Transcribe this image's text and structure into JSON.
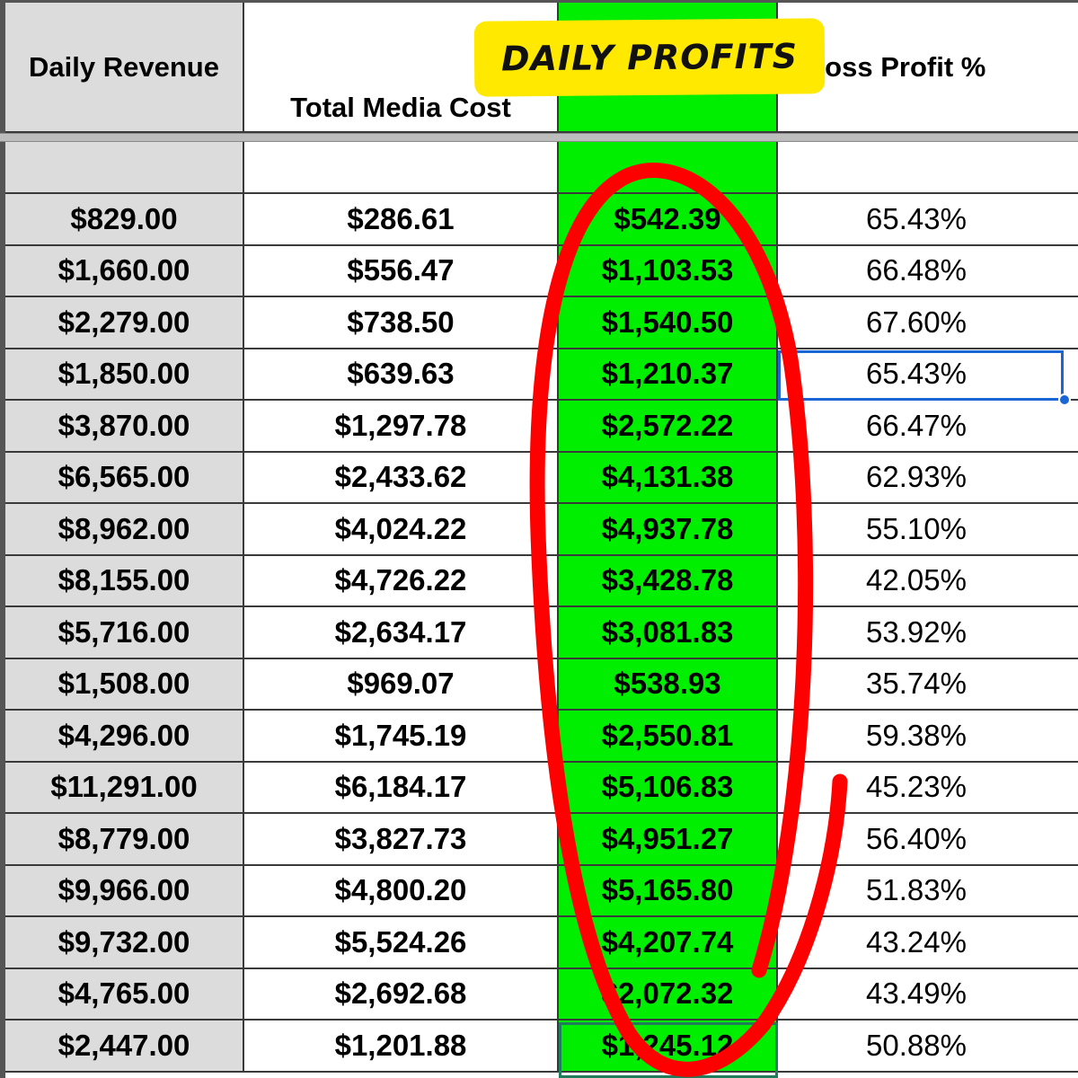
{
  "columns": {
    "revenue": "Daily Revenue",
    "media_cost": "Total Media Cost",
    "profit": "",
    "gross_profit_pct": "Gross Profit %"
  },
  "annotation": {
    "sticker_text": "DAILY PROFITS"
  },
  "colors": {
    "profit_column": "#00ee00",
    "revenue_column": "#dcdcdc",
    "sticker": "#ffe900",
    "circle": "#ff0000",
    "selection": "#1a66d4"
  },
  "rows": [
    {
      "revenue": "$829.00",
      "media_cost": "$286.61",
      "profit": "$542.39",
      "gross_profit_pct": "65.43%"
    },
    {
      "revenue": "$1,660.00",
      "media_cost": "$556.47",
      "profit": "$1,103.53",
      "gross_profit_pct": "66.48%"
    },
    {
      "revenue": "$2,279.00",
      "media_cost": "$738.50",
      "profit": "$1,540.50",
      "gross_profit_pct": "67.60%"
    },
    {
      "revenue": "$1,850.00",
      "media_cost": "$639.63",
      "profit": "$1,210.37",
      "gross_profit_pct": "65.43%"
    },
    {
      "revenue": "$3,870.00",
      "media_cost": "$1,297.78",
      "profit": "$2,572.22",
      "gross_profit_pct": "66.47%"
    },
    {
      "revenue": "$6,565.00",
      "media_cost": "$2,433.62",
      "profit": "$4,131.38",
      "gross_profit_pct": "62.93%"
    },
    {
      "revenue": "$8,962.00",
      "media_cost": "$4,024.22",
      "profit": "$4,937.78",
      "gross_profit_pct": "55.10%"
    },
    {
      "revenue": "$8,155.00",
      "media_cost": "$4,726.22",
      "profit": "$3,428.78",
      "gross_profit_pct": "42.05%"
    },
    {
      "revenue": "$5,716.00",
      "media_cost": "$2,634.17",
      "profit": "$3,081.83",
      "gross_profit_pct": "53.92%"
    },
    {
      "revenue": "$1,508.00",
      "media_cost": "$969.07",
      "profit": "$538.93",
      "gross_profit_pct": "35.74%"
    },
    {
      "revenue": "$4,296.00",
      "media_cost": "$1,745.19",
      "profit": "$2,550.81",
      "gross_profit_pct": "59.38%"
    },
    {
      "revenue": "$11,291.00",
      "media_cost": "$6,184.17",
      "profit": "$5,106.83",
      "gross_profit_pct": "45.23%"
    },
    {
      "revenue": "$8,779.00",
      "media_cost": "$3,827.73",
      "profit": "$4,951.27",
      "gross_profit_pct": "56.40%"
    },
    {
      "revenue": "$9,966.00",
      "media_cost": "$4,800.20",
      "profit": "$5,165.80",
      "gross_profit_pct": "51.83%"
    },
    {
      "revenue": "$9,732.00",
      "media_cost": "$5,524.26",
      "profit": "$4,207.74",
      "gross_profit_pct": "43.24%"
    },
    {
      "revenue": "$4,765.00",
      "media_cost": "$2,692.68",
      "profit": "$2,072.32",
      "gross_profit_pct": "43.49%"
    },
    {
      "revenue": "$2,447.00",
      "media_cost": "$1,201.88",
      "profit": "$1,245.12",
      "gross_profit_pct": "50.88%"
    }
  ]
}
